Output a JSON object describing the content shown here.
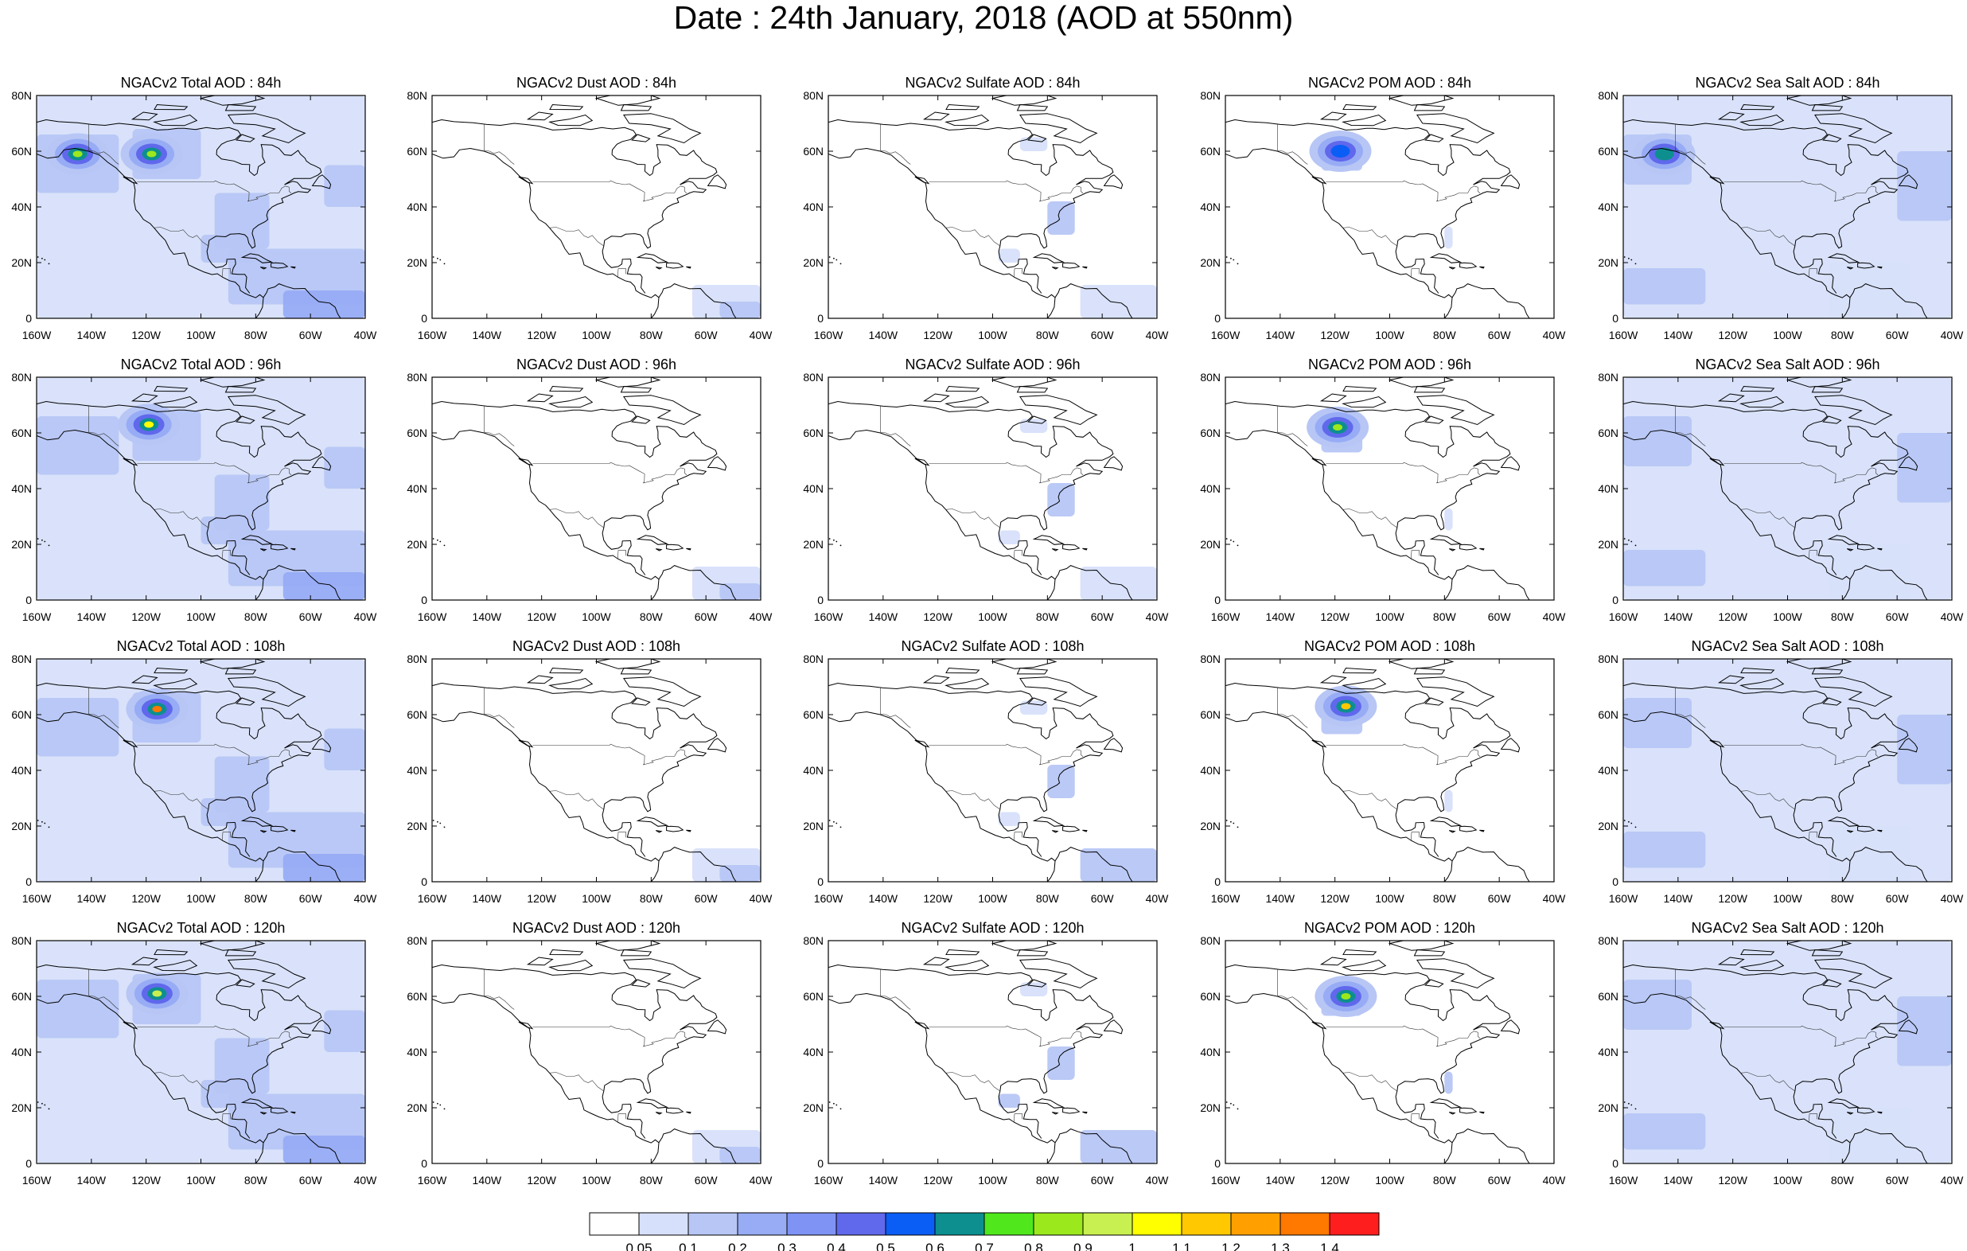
{
  "title": "Date : 24th January, 2018 (AOD at 550nm)",
  "panels": [
    [
      {
        "title": "NGACv2 Total AOD : 84h",
        "species": "total",
        "hour": 84
      },
      {
        "title": "NGACv2 Dust AOD : 84h",
        "species": "dust",
        "hour": 84
      },
      {
        "title": "NGACv2 Sulfate AOD : 84h",
        "species": "sulfate",
        "hour": 84
      },
      {
        "title": "NGACv2 POM AOD : 84h",
        "species": "pom",
        "hour": 84
      },
      {
        "title": "NGACv2 Sea Salt AOD : 84h",
        "species": "seasalt",
        "hour": 84
      }
    ],
    [
      {
        "title": "NGACv2 Total AOD : 96h",
        "species": "total",
        "hour": 96
      },
      {
        "title": "NGACv2 Dust AOD : 96h",
        "species": "dust",
        "hour": 96
      },
      {
        "title": "NGACv2 Sulfate AOD : 96h",
        "species": "sulfate",
        "hour": 96
      },
      {
        "title": "NGACv2 POM AOD : 96h",
        "species": "pom",
        "hour": 96
      },
      {
        "title": "NGACv2 Sea Salt AOD : 96h",
        "species": "seasalt",
        "hour": 96
      }
    ],
    [
      {
        "title": "NGACv2 Total AOD : 108h",
        "species": "total",
        "hour": 108
      },
      {
        "title": "NGACv2 Dust AOD : 108h",
        "species": "dust",
        "hour": 108
      },
      {
        "title": "NGACv2 Sulfate AOD : 108h",
        "species": "sulfate",
        "hour": 108
      },
      {
        "title": "NGACv2 POM AOD : 108h",
        "species": "pom",
        "hour": 108
      },
      {
        "title": "NGACv2 Sea Salt AOD : 108h",
        "species": "seasalt",
        "hour": 108
      }
    ],
    [
      {
        "title": "NGACv2 Total AOD : 120h",
        "species": "total",
        "hour": 120
      },
      {
        "title": "NGACv2 Dust AOD : 120h",
        "species": "dust",
        "hour": 120
      },
      {
        "title": "NGACv2 Sulfate AOD : 120h",
        "species": "sulfate",
        "hour": 120
      },
      {
        "title": "NGACv2 POM AOD : 120h",
        "species": "pom",
        "hour": 120
      },
      {
        "title": "NGACv2 Sea Salt  AOD : 120h",
        "species": "seasalt",
        "hour": 120
      }
    ]
  ],
  "lat_ticks": [
    "80N",
    "60N",
    "40N",
    "20N",
    "0"
  ],
  "lon_ticks": [
    "160W",
    "140W",
    "120W",
    "100W",
    "80W",
    "60W",
    "40W"
  ],
  "map_extent": {
    "lon": [
      -160,
      -40
    ],
    "lat": [
      0,
      80
    ]
  },
  "colorbar": {
    "colors": [
      "#ffffff",
      "#d7e0fa",
      "#b7c6f5",
      "#97acf5",
      "#7f93f5",
      "#6068ec",
      "#0b5ef5",
      "#0d8f8f",
      "#50e81c",
      "#9be81c",
      "#c8f050",
      "#ffff00",
      "#ffc800",
      "#ffa000",
      "#ff7800",
      "#ff1e1e"
    ],
    "labels": [
      "0.05",
      "0.1",
      "0.2",
      "0.3",
      "0.4",
      "0.5",
      "0.6",
      "0.7",
      "0.8",
      "0.9",
      "1",
      "1.1",
      "1.2",
      "1.3",
      "1.4"
    ]
  },
  "plumes": {
    "total": {
      "84": [
        {
          "lon": -145,
          "lat": 59,
          "value": 0.8
        },
        {
          "lon": -118,
          "lat": 59,
          "value": 0.8
        }
      ],
      "96": [
        {
          "lon": -119,
          "lat": 63,
          "value": 1.0
        }
      ],
      "108": [
        {
          "lon": -116,
          "lat": 62,
          "value": 1.3
        }
      ],
      "120": [
        {
          "lon": -116,
          "lat": 61,
          "value": 0.9
        }
      ]
    },
    "pom": {
      "84": [
        {
          "lon": -118,
          "lat": 60,
          "value": 0.5
        }
      ],
      "96": [
        {
          "lon": -119,
          "lat": 62,
          "value": 0.8
        }
      ],
      "108": [
        {
          "lon": -116,
          "lat": 63,
          "value": 1.1
        }
      ],
      "120": [
        {
          "lon": -116,
          "lat": 60,
          "value": 0.8
        }
      ]
    },
    "seasalt": {
      "84": [
        {
          "lon": -145,
          "lat": 59,
          "value": 0.6
        }
      ]
    }
  }
}
